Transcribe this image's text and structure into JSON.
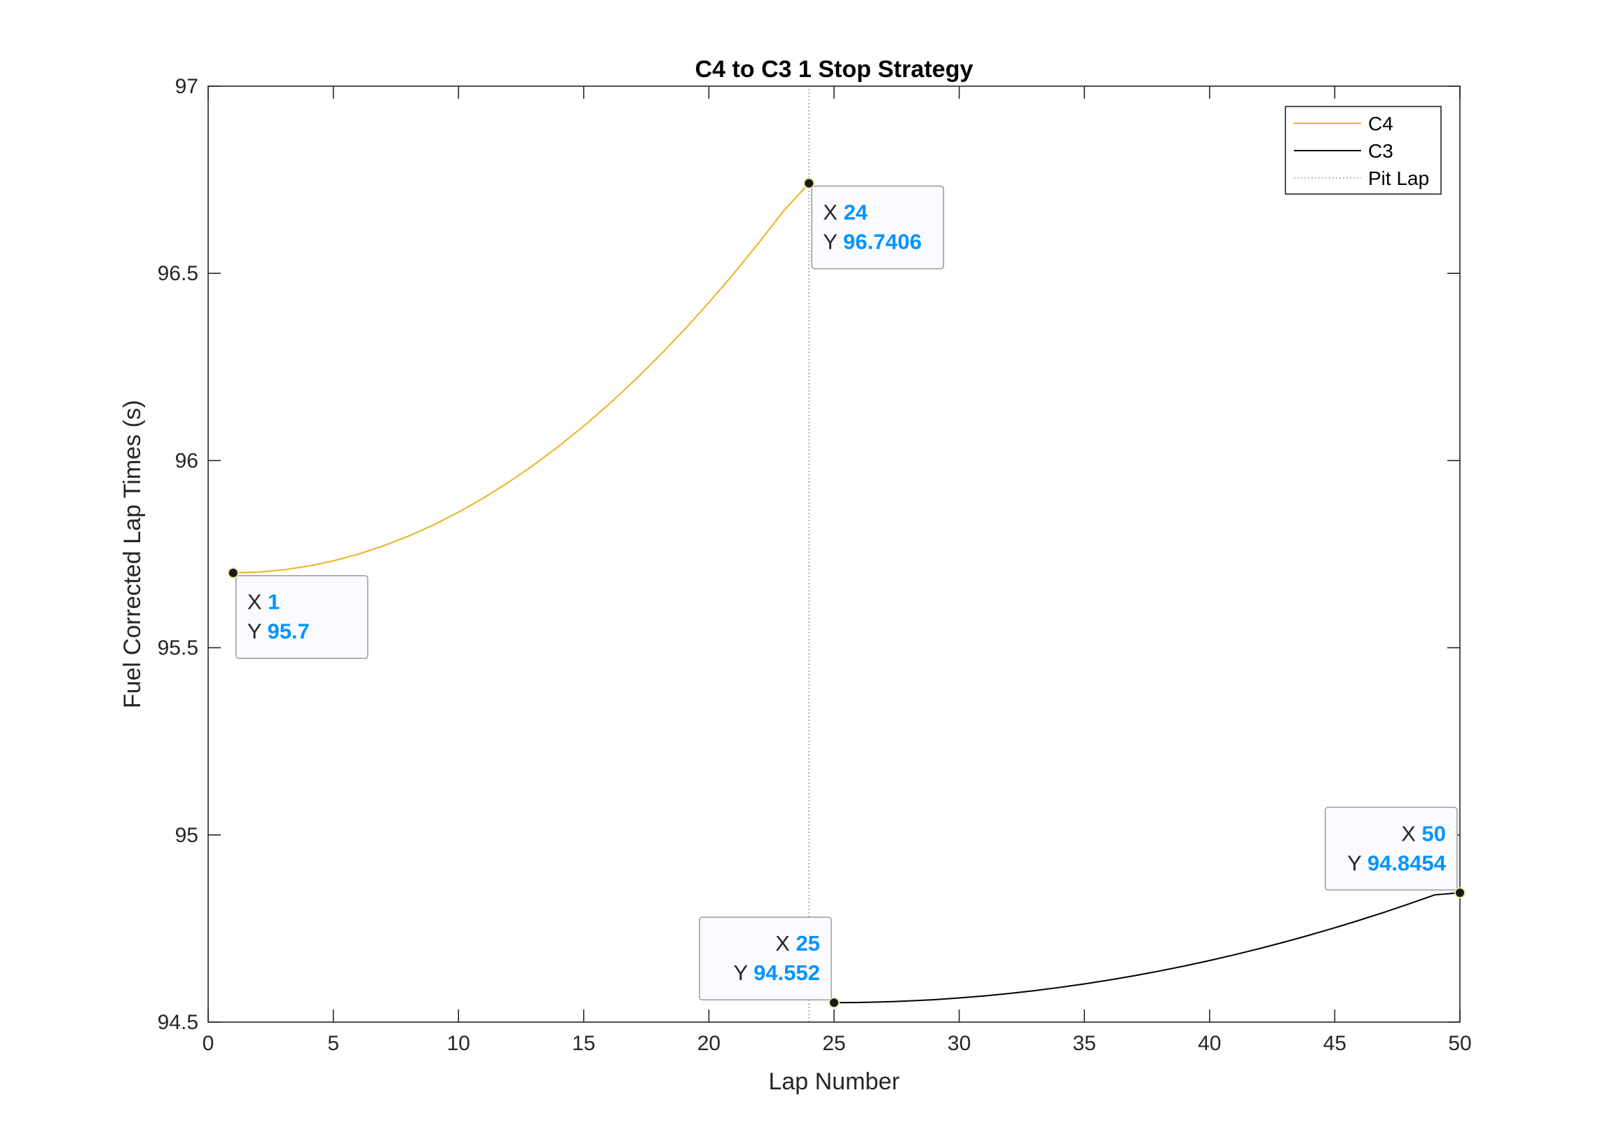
{
  "chart_data": {
    "type": "line",
    "title": "C4 to C3 1 Stop Strategy",
    "xlabel": "Lap Number",
    "ylabel": "Fuel Corrected Lap Times (s)",
    "xlim": [
      0,
      50
    ],
    "ylim": [
      94.5,
      97
    ],
    "xticks": [
      "0",
      "5",
      "10",
      "15",
      "20",
      "25",
      "30",
      "35",
      "40",
      "45",
      "50"
    ],
    "yticks": [
      "94.5",
      "95",
      "95.5",
      "96",
      "96.5",
      "97"
    ],
    "grid": false,
    "legend_position": "top-right",
    "series": [
      {
        "name": "C4",
        "color": "#EDB120",
        "x": [
          1,
          2,
          3,
          4,
          5,
          6,
          7,
          8,
          9,
          10,
          11,
          12,
          13,
          14,
          15,
          16,
          17,
          18,
          19,
          20,
          21,
          22,
          23,
          24
        ],
        "y": [
          95.7,
          95.702,
          95.708,
          95.718,
          95.732,
          95.75,
          95.772,
          95.798,
          95.828,
          95.862,
          95.9,
          95.942,
          95.988,
          96.038,
          96.092,
          96.15,
          96.212,
          96.278,
          96.348,
          96.422,
          96.5,
          96.582,
          96.668,
          96.7406
        ]
      },
      {
        "name": "C3",
        "color": "#000000",
        "x": [
          25,
          26,
          27,
          28,
          29,
          30,
          31,
          32,
          33,
          34,
          35,
          36,
          37,
          38,
          39,
          40,
          41,
          42,
          43,
          44,
          45,
          46,
          47,
          48,
          49,
          50
        ],
        "y": [
          94.552,
          94.5525,
          94.554,
          94.5565,
          94.56,
          94.5645,
          94.57,
          94.5765,
          94.584,
          94.5925,
          94.602,
          94.6125,
          94.624,
          94.6365,
          94.65,
          94.6645,
          94.68,
          94.6965,
          94.714,
          94.7325,
          94.752,
          94.7725,
          94.794,
          94.8165,
          94.84,
          94.8454
        ]
      },
      {
        "name": "Pit Lap",
        "color": "#A0A0A0",
        "style": "dotted",
        "x": [
          24,
          24
        ],
        "y": [
          94.5,
          97
        ]
      }
    ],
    "datatips": [
      {
        "x": "1",
        "y": "95.7",
        "xv": 1,
        "yv": 95.7,
        "placement": "below-right"
      },
      {
        "x": "24",
        "y": "96.7406",
        "xv": 24,
        "yv": 96.7406,
        "placement": "below-right"
      },
      {
        "x": "25",
        "y": "94.552",
        "xv": 25,
        "yv": 94.552,
        "placement": "above-left"
      },
      {
        "x": "50",
        "y": "94.8454",
        "xv": 50,
        "yv": 94.8454,
        "placement": "above-left"
      }
    ],
    "datatip_value_color": "#0095FF"
  },
  "datatip_labels": {
    "x": "X",
    "y": "Y"
  }
}
